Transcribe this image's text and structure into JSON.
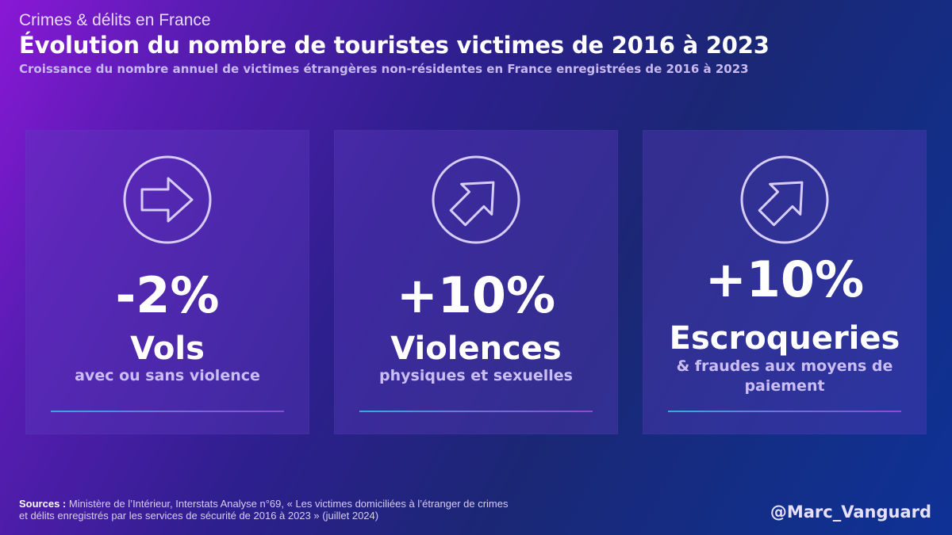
{
  "header": {
    "kicker": "Crimes & délits en France",
    "title": "Évolution du nombre de touristes victimes de 2016 à 2023",
    "subtitle": "Croissance du nombre annuel de victimes étrangères non-résidentes en France enregistrées de 2016 à 2023"
  },
  "cards": [
    {
      "icon": "arrow-right-circle-icon",
      "value": "-2%",
      "category": "Vols",
      "description": [
        "avec ou sans violence"
      ]
    },
    {
      "icon": "arrow-up-right-circle-icon",
      "value": "+10%",
      "category": "Violences",
      "description": [
        "physiques et sexuelles"
      ]
    },
    {
      "icon": "arrow-up-right-circle-icon",
      "value": "+10%",
      "category": "Escroqueries",
      "description": [
        "& fraudes aux moyens de",
        "paiement"
      ]
    }
  ],
  "footer": {
    "sources_label": "Sources :",
    "sources_line1": "Ministère de l’Intérieur, Interstats Analyse n°69, « Les victimes domiciliées à l’étranger de crimes",
    "sources_line2": "et délits enregistrés par les services de sécurité de 2016 à 2023 » (juillet 2024)",
    "handle": "@Marc_Vanguard"
  },
  "colors": {
    "card_bg": "#4a2d9e",
    "description_text": "#c9bdf1",
    "icon_stroke": "#d6ccf5",
    "rule_start": "#3aa9d8",
    "rule_end": "#8e47d6"
  }
}
